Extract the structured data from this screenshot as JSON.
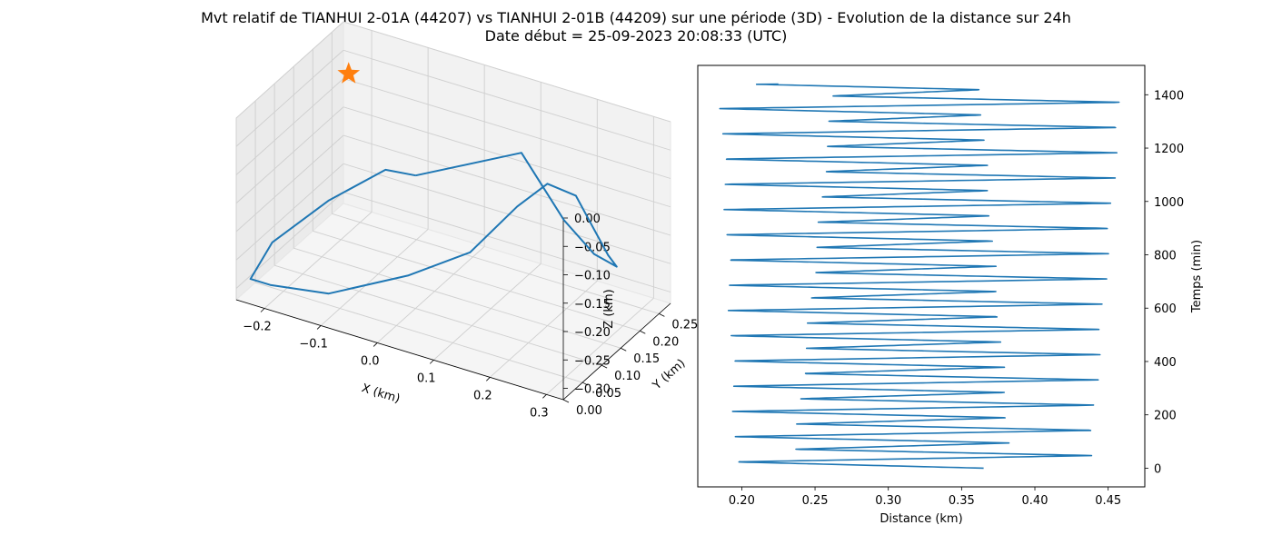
{
  "figure": {
    "title_line1": "Mvt relatif de TIANHUI 2-01A (44207) vs TIANHUI 2-01B (44209) sur une période (3D) - Evolution de la distance sur 24h",
    "title_line2": "Date début = 25-09-2023 20:08:33 (UTC)"
  },
  "chart_data": [
    {
      "type": "line",
      "projection": "3d",
      "xlabel": "X (km)",
      "ylabel": "Y (km)",
      "zlabel": "Z (km)",
      "xticks": [
        "−0.2",
        "−0.1",
        "0.0",
        "0.1",
        "0.2",
        "0.3"
      ],
      "yticks": [
        "0.00",
        "0.05",
        "0.10",
        "0.15",
        "0.20",
        "0.25"
      ],
      "zticks": [
        "0.00",
        "−0.05",
        "−0.10",
        "−0.15",
        "−0.20",
        "−0.25",
        "−0.30"
      ],
      "xlim": [
        -0.25,
        0.33
      ],
      "ylim": [
        0.0,
        0.28
      ],
      "zlim": [
        -0.32,
        0.0
      ],
      "grid": true,
      "series": [
        {
          "color": "#1f77b4",
          "x": [
            -0.02,
            -0.06,
            -0.14,
            -0.22,
            -0.245,
            -0.21,
            -0.12,
            0.0,
            0.09,
            0.16,
            0.2,
            0.23,
            0.245,
            0.26,
            0.255,
            0.215,
            0.175,
            0.12,
            -0.02
          ],
          "y": [
            0.13,
            0.11,
            0.08,
            0.05,
            0.03,
            0.03,
            0.05,
            0.08,
            0.11,
            0.13,
            0.15,
            0.18,
            0.2,
            0.22,
            0.25,
            0.25,
            0.23,
            0.2,
            0.13
          ],
          "z": [
            -0.11,
            -0.1,
            -0.16,
            -0.24,
            -0.3,
            -0.3,
            -0.3,
            -0.25,
            -0.2,
            -0.11,
            -0.07,
            -0.1,
            -0.16,
            -0.22,
            -0.26,
            -0.25,
            -0.19,
            -0.07,
            -0.11
          ]
        }
      ],
      "markers": [
        {
          "symbol": "star",
          "color": "#ff7f0e",
          "x": -0.2,
          "y": 0.22,
          "z": -0.04
        }
      ]
    },
    {
      "type": "line",
      "xlabel": "Distance (km)",
      "ylabel": "Temps (min)",
      "xticks": [
        "0.20",
        "0.25",
        "0.30",
        "0.35",
        "0.40",
        "0.45"
      ],
      "yticks": [
        "0",
        "200",
        "400",
        "600",
        "800",
        "1000",
        "1200",
        "1400"
      ],
      "xlim": [
        0.17,
        0.475
      ],
      "ylim": [
        -70,
        1510
      ],
      "grid": false,
      "y_axis_position": "right",
      "series": [
        {
          "color": "#1f77b4",
          "t_start": 0,
          "t_end": 1440,
          "period_min": 94.6,
          "outer_min_start": 0.195,
          "outer_min_end": 0.184,
          "outer_max_start": 0.439,
          "outer_max_end": 0.461,
          "inner_min_start": 0.234,
          "inner_min_end": 0.262,
          "inner_max_start": 0.385,
          "inner_max_end": 0.363,
          "start_distance": 0.365,
          "end_distance": 0.225
        }
      ]
    }
  ]
}
